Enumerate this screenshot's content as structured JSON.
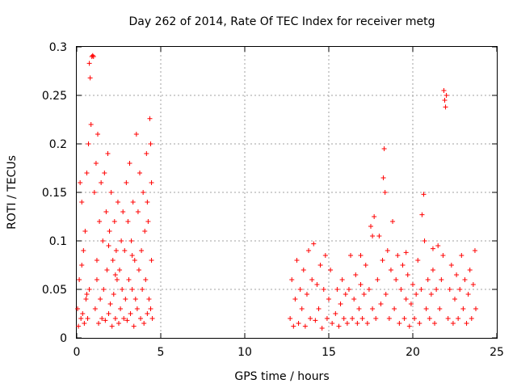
{
  "chart_data": {
    "type": "scatter",
    "title": "Day 262 of 2014, Rate Of TEC Index for receiver metg",
    "xlabel": "GPS time / hours",
    "ylabel": "ROTI / TECUs",
    "xlim": [
      0,
      25
    ],
    "ylim": [
      0,
      0.3
    ],
    "xticks": [
      0,
      5,
      10,
      15,
      20,
      25
    ],
    "xtick_labels": [
      "0",
      "5",
      "10",
      "15",
      "20",
      "25"
    ],
    "yticks": [
      0,
      0.05,
      0.1,
      0.15,
      0.2,
      0.25,
      0.3
    ],
    "ytick_labels": [
      "0",
      "0.05",
      "0.1",
      "0.15",
      "0.2",
      "0.25",
      "0.3"
    ],
    "grid": true,
    "marker": "+",
    "series": [
      {
        "name": "ROTI",
        "color": "#ff0000",
        "points": [
          [
            0.05,
            0.03
          ],
          [
            0.1,
            0.012
          ],
          [
            0.15,
            0.06
          ],
          [
            0.2,
            0.16
          ],
          [
            0.25,
            0.02
          ],
          [
            0.3,
            0.14
          ],
          [
            0.35,
            0.025
          ],
          [
            0.4,
            0.09
          ],
          [
            0.45,
            0.015
          ],
          [
            0.5,
            0.11
          ],
          [
            0.55,
            0.04
          ],
          [
            0.6,
            0.17
          ],
          [
            0.65,
            0.02
          ],
          [
            0.7,
            0.2
          ],
          [
            0.75,
            0.05
          ],
          [
            0.75,
            0.283
          ],
          [
            0.8,
            0.268
          ],
          [
            0.85,
            0.22
          ],
          [
            0.9,
            0.29
          ],
          [
            0.95,
            0.291
          ],
          [
            1.0,
            0.29
          ],
          [
            1.05,
            0.15
          ],
          [
            1.1,
            0.03
          ],
          [
            1.15,
            0.18
          ],
          [
            1.2,
            0.06
          ],
          [
            1.25,
            0.21
          ],
          [
            1.3,
            0.015
          ],
          [
            1.35,
            0.12
          ],
          [
            1.4,
            0.04
          ],
          [
            1.45,
            0.16
          ],
          [
            1.5,
            0.02
          ],
          [
            1.55,
            0.1
          ],
          [
            1.6,
            0.05
          ],
          [
            1.65,
            0.17
          ],
          [
            1.7,
            0.018
          ],
          [
            1.75,
            0.13
          ],
          [
            1.8,
            0.07
          ],
          [
            1.85,
            0.19
          ],
          [
            1.9,
            0.025
          ],
          [
            1.95,
            0.11
          ],
          [
            2.0,
            0.035
          ],
          [
            2.05,
            0.15
          ],
          [
            2.1,
            0.012
          ],
          [
            2.15,
            0.08
          ],
          [
            2.2,
            0.045
          ],
          [
            2.25,
            0.12
          ],
          [
            2.3,
            0.02
          ],
          [
            2.35,
            0.09
          ],
          [
            2.4,
            0.06
          ],
          [
            2.45,
            0.14
          ],
          [
            2.5,
            0.015
          ],
          [
            2.55,
            0.07
          ],
          [
            2.6,
            0.03
          ],
          [
            2.65,
            0.1
          ],
          [
            2.7,
            0.05
          ],
          [
            2.75,
            0.13
          ],
          [
            2.8,
            0.02
          ],
          [
            2.85,
            0.09
          ],
          [
            2.9,
            0.04
          ],
          [
            2.95,
            0.16
          ],
          [
            3.0,
            0.018
          ],
          [
            3.05,
            0.12
          ],
          [
            3.1,
            0.06
          ],
          [
            3.15,
            0.18
          ],
          [
            3.2,
            0.025
          ],
          [
            3.25,
            0.1
          ],
          [
            3.3,
            0.05
          ],
          [
            3.35,
            0.14
          ],
          [
            3.4,
            0.012
          ],
          [
            3.45,
            0.08
          ],
          [
            3.5,
            0.04
          ],
          [
            3.55,
            0.21
          ],
          [
            3.6,
            0.03
          ],
          [
            3.65,
            0.13
          ],
          [
            3.7,
            0.07
          ],
          [
            3.75,
            0.17
          ],
          [
            3.8,
            0.02
          ],
          [
            3.85,
            0.09
          ],
          [
            3.9,
            0.05
          ],
          [
            3.95,
            0.15
          ],
          [
            4.0,
            0.015
          ],
          [
            4.05,
            0.11
          ],
          [
            4.1,
            0.06
          ],
          [
            4.15,
            0.19
          ],
          [
            4.2,
            0.025
          ],
          [
            4.25,
            0.12
          ],
          [
            4.3,
            0.04
          ],
          [
            4.35,
            0.226
          ],
          [
            4.4,
            0.03
          ],
          [
            4.45,
            0.16
          ],
          [
            4.5,
            0.02
          ],
          [
            4.45,
            0.08
          ],
          [
            4.4,
            0.2
          ],
          [
            4.2,
            0.14
          ],
          [
            1.2,
            0.08
          ],
          [
            0.6,
            0.045
          ],
          [
            2.3,
            0.065
          ],
          [
            3.3,
            0.085
          ],
          [
            0.3,
            0.075
          ],
          [
            1.9,
            0.095
          ],
          [
            12.7,
            0.02
          ],
          [
            12.8,
            0.06
          ],
          [
            12.9,
            0.012
          ],
          [
            13.0,
            0.04
          ],
          [
            13.1,
            0.08
          ],
          [
            13.2,
            0.015
          ],
          [
            13.3,
            0.05
          ],
          [
            13.4,
            0.03
          ],
          [
            13.5,
            0.07
          ],
          [
            13.6,
            0.012
          ],
          [
            13.7,
            0.045
          ],
          [
            13.8,
            0.09
          ],
          [
            13.9,
            0.02
          ],
          [
            14.0,
            0.06
          ],
          [
            14.1,
            0.097
          ],
          [
            14.2,
            0.018
          ],
          [
            14.3,
            0.055
          ],
          [
            14.4,
            0.03
          ],
          [
            14.5,
            0.075
          ],
          [
            14.6,
            0.01
          ],
          [
            14.7,
            0.05
          ],
          [
            14.8,
            0.085
          ],
          [
            14.9,
            0.02
          ],
          [
            15.0,
            0.04
          ],
          [
            15.1,
            0.07
          ],
          [
            15.2,
            0.015
          ],
          [
            15.4,
            0.025
          ],
          [
            15.5,
            0.05
          ],
          [
            15.6,
            0.012
          ],
          [
            15.7,
            0.035
          ],
          [
            15.8,
            0.06
          ],
          [
            15.9,
            0.02
          ],
          [
            16.0,
            0.045
          ],
          [
            16.1,
            0.015
          ],
          [
            16.2,
            0.05
          ],
          [
            16.3,
            0.085
          ],
          [
            16.4,
            0.02
          ],
          [
            16.5,
            0.04
          ],
          [
            16.6,
            0.065
          ],
          [
            16.7,
            0.015
          ],
          [
            16.8,
            0.03
          ],
          [
            16.9,
            0.055
          ],
          [
            17.0,
            0.02
          ],
          [
            17.1,
            0.045
          ],
          [
            17.2,
            0.075
          ],
          [
            17.3,
            0.015
          ],
          [
            17.4,
            0.05
          ],
          [
            17.5,
            0.115
          ],
          [
            17.6,
            0.03
          ],
          [
            17.7,
            0.125
          ],
          [
            17.8,
            0.02
          ],
          [
            17.9,
            0.06
          ],
          [
            18.0,
            0.105
          ],
          [
            18.1,
            0.035
          ],
          [
            18.2,
            0.08
          ],
          [
            18.25,
            0.165
          ],
          [
            18.3,
            0.195
          ],
          [
            18.35,
            0.15
          ],
          [
            18.4,
            0.045
          ],
          [
            18.5,
            0.09
          ],
          [
            18.6,
            0.02
          ],
          [
            18.7,
            0.07
          ],
          [
            18.8,
            0.12
          ],
          [
            18.9,
            0.03
          ],
          [
            19.0,
            0.06
          ],
          [
            19.1,
            0.085
          ],
          [
            19.2,
            0.015
          ],
          [
            19.3,
            0.05
          ],
          [
            19.4,
            0.075
          ],
          [
            19.5,
            0.02
          ],
          [
            19.6,
            0.04
          ],
          [
            19.7,
            0.065
          ],
          [
            19.8,
            0.012
          ],
          [
            19.9,
            0.035
          ],
          [
            20.0,
            0.055
          ],
          [
            20.1,
            0.02
          ],
          [
            20.2,
            0.045
          ],
          [
            20.3,
            0.08
          ],
          [
            20.4,
            0.015
          ],
          [
            20.5,
            0.05
          ],
          [
            20.55,
            0.127
          ],
          [
            20.65,
            0.148
          ],
          [
            20.7,
            0.1
          ],
          [
            20.8,
            0.03
          ],
          [
            20.9,
            0.06
          ],
          [
            21.0,
            0.02
          ],
          [
            21.1,
            0.045
          ],
          [
            21.2,
            0.07
          ],
          [
            21.3,
            0.015
          ],
          [
            21.4,
            0.05
          ],
          [
            21.5,
            0.095
          ],
          [
            21.6,
            0.03
          ],
          [
            21.7,
            0.06
          ],
          [
            21.8,
            0.085
          ],
          [
            21.85,
            0.255
          ],
          [
            21.9,
            0.245
          ],
          [
            21.95,
            0.238
          ],
          [
            22.0,
            0.25
          ],
          [
            22.1,
            0.02
          ],
          [
            22.2,
            0.05
          ],
          [
            22.3,
            0.075
          ],
          [
            22.4,
            0.015
          ],
          [
            22.5,
            0.04
          ],
          [
            22.6,
            0.065
          ],
          [
            22.7,
            0.02
          ],
          [
            22.8,
            0.05
          ],
          [
            22.9,
            0.085
          ],
          [
            23.0,
            0.03
          ],
          [
            23.1,
            0.06
          ],
          [
            23.2,
            0.015
          ],
          [
            23.3,
            0.045
          ],
          [
            23.4,
            0.07
          ],
          [
            23.5,
            0.02
          ],
          [
            23.6,
            0.055
          ],
          [
            23.7,
            0.09
          ],
          [
            23.75,
            0.03
          ],
          [
            16.9,
            0.085
          ],
          [
            17.6,
            0.105
          ],
          [
            19.6,
            0.088
          ],
          [
            21.2,
            0.092
          ]
        ]
      }
    ]
  }
}
